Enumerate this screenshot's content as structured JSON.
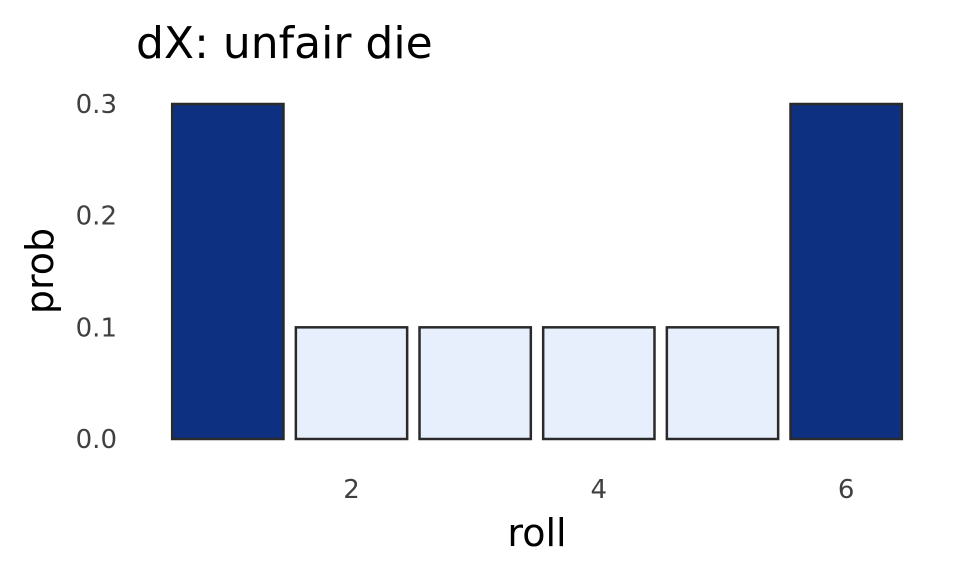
{
  "chart_data": {
    "type": "bar",
    "title": "dX: unfair die",
    "xlabel": "roll",
    "ylabel": "prob",
    "categories": [
      1,
      2,
      3,
      4,
      5,
      6
    ],
    "values": [
      0.3,
      0.1,
      0.1,
      0.1,
      0.1,
      0.3
    ],
    "xlim": [
      0.5,
      6.5
    ],
    "ylim": [
      0,
      0.3
    ],
    "x_ticks": [
      2,
      4,
      6
    ],
    "x_tick_labels": [
      "2",
      "4",
      "6"
    ],
    "y_ticks": [
      0.0,
      0.1,
      0.2,
      0.3
    ],
    "y_tick_labels": [
      "0.0",
      "0.1",
      "0.2",
      "0.3"
    ],
    "grid": false,
    "legend": false,
    "colors": {
      "high": "#0d3180",
      "low": "#e8effc",
      "outline": "#2a2a2a"
    }
  }
}
